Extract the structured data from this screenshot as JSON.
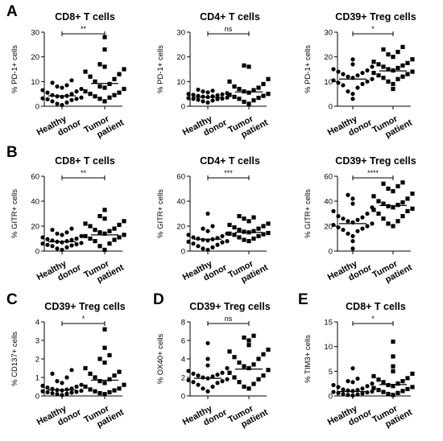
{
  "panel_letters": [
    "A",
    "B",
    "C",
    "D",
    "E"
  ],
  "chart_data": [
    {
      "type": "scatter",
      "title": "CD8+ T cells",
      "ylabel": "% PD-1+ cells",
      "ylim": [
        0,
        30
      ],
      "yticks": [
        "0",
        "10",
        "20",
        "30"
      ],
      "categories": [
        "Healthy donor",
        "Tumor patient"
      ],
      "significance": "**",
      "series": [
        {
          "marker": "circle",
          "mean": 4.2,
          "values": [
            0.5,
            1.0,
            1.5,
            2.0,
            2.5,
            2.8,
            3.0,
            3.2,
            3.5,
            3.8,
            4.0,
            4.2,
            4.5,
            5.0,
            5.5,
            6.0,
            6.5,
            7.0,
            7.5,
            8.0,
            8.5,
            9.5,
            10.5
          ]
        },
        {
          "marker": "square",
          "mean": 9.2,
          "values": [
            2.0,
            3.0,
            3.5,
            4.0,
            4.5,
            5.0,
            5.5,
            6.0,
            7.0,
            7.5,
            8.0,
            9.0,
            10.0,
            11.0,
            12.0,
            13.0,
            14.0,
            15.0,
            16.0,
            17.0,
            23.0,
            28.0
          ]
        }
      ]
    },
    {
      "type": "scatter",
      "title": "CD4+ T cells",
      "ylabel": "% PD-1+ cells",
      "ylim": [
        0,
        30
      ],
      "yticks": [
        "0",
        "10",
        "20",
        "30"
      ],
      "categories": [
        "Healthy donor",
        "Tumor patient"
      ],
      "significance": "ns",
      "series": [
        {
          "marker": "circle",
          "mean": 3.6,
          "values": [
            1.5,
            2.0,
            2.3,
            2.6,
            2.9,
            3.0,
            3.1,
            3.3,
            3.5,
            3.7,
            3.9,
            4.0,
            4.2,
            4.4,
            4.6,
            4.8,
            5.0,
            5.3,
            5.6,
            6.0,
            6.3,
            6.7
          ]
        },
        {
          "marker": "square",
          "mean": 5.8,
          "values": [
            1.0,
            1.8,
            2.4,
            3.0,
            3.4,
            3.8,
            4.2,
            4.6,
            5.0,
            5.5,
            6.0,
            6.5,
            7.0,
            7.5,
            8.0,
            9.0,
            10.0,
            11.0,
            16.0,
            16.5
          ]
        }
      ]
    },
    {
      "type": "scatter",
      "title": "CD39+ Treg cells",
      "ylabel": "% PD-1+ cells",
      "ylim": [
        0,
        30
      ],
      "yticks": [
        "0",
        "10",
        "20",
        "30"
      ],
      "categories": [
        "Healthy donor",
        "Tumor patient"
      ],
      "significance": "*",
      "series": [
        {
          "marker": "circle",
          "mean": 11.0,
          "values": [
            3.0,
            5.0,
            6.0,
            7.5,
            8.5,
            9.0,
            9.5,
            10.0,
            10.5,
            11.0,
            11.5,
            12.0,
            12.5,
            13.0,
            13.5,
            14.0,
            14.5,
            15.0,
            16.0,
            17.0,
            19.0
          ]
        },
        {
          "marker": "square",
          "mean": 14.3,
          "values": [
            7.0,
            9.0,
            10.0,
            11.0,
            11.5,
            12.0,
            12.5,
            13.0,
            13.5,
            14.0,
            14.5,
            15.0,
            15.5,
            16.0,
            16.5,
            17.0,
            17.5,
            18.0,
            19.0,
            20.0,
            21.0,
            22.0,
            23.0,
            24.0
          ]
        }
      ]
    },
    {
      "type": "scatter",
      "title": "CD8+ T cells",
      "ylabel": "% GITR+ cells",
      "ylim": [
        0,
        60
      ],
      "yticks": [
        "0",
        "20",
        "40",
        "60"
      ],
      "categories": [
        "Healthy donor",
        "Tumor patient"
      ],
      "significance": "**",
      "series": [
        {
          "marker": "circle",
          "mean": 7.5,
          "values": [
            1.0,
            2.0,
            3.0,
            4.0,
            4.5,
            5.0,
            5.5,
            6.0,
            6.5,
            7.0,
            7.5,
            8.0,
            8.5,
            9.0,
            9.5,
            10.0,
            11.0,
            12.0,
            13.0,
            14.0,
            15.0,
            17.0,
            18.0
          ]
        },
        {
          "marker": "square",
          "mean": 13.0,
          "values": [
            1.0,
            4.0,
            6.0,
            8.0,
            9.0,
            10.0,
            11.0,
            12.0,
            13.0,
            14.0,
            15.0,
            16.0,
            17.0,
            18.0,
            20.0,
            21.0,
            22.0,
            24.0,
            26.0,
            28.0,
            33.0
          ]
        }
      ]
    },
    {
      "type": "scatter",
      "title": "CD4+ T cells",
      "ylabel": "% GITR+ cells",
      "ylim": [
        0,
        60
      ],
      "yticks": [
        "0",
        "20",
        "40",
        "60"
      ],
      "categories": [
        "Healthy donor",
        "Tumor patient"
      ],
      "significance": "***",
      "series": [
        {
          "marker": "circle",
          "mean": 9.5,
          "values": [
            1.0,
            2.0,
            3.0,
            4.0,
            5.0,
            6.0,
            7.0,
            7.5,
            8.0,
            8.5,
            9.0,
            9.5,
            10.0,
            10.5,
            11.0,
            12.0,
            13.0,
            14.0,
            16.0,
            18.0,
            20.0,
            30.0
          ]
        },
        {
          "marker": "square",
          "mean": 15.0,
          "values": [
            8.0,
            9.0,
            10.0,
            11.0,
            12.0,
            13.0,
            13.5,
            14.0,
            14.5,
            15.0,
            15.5,
            16.0,
            17.0,
            18.0,
            19.0,
            20.0,
            21.0,
            22.0,
            24.0,
            26.0,
            27.0,
            28.0
          ]
        }
      ]
    },
    {
      "type": "scatter",
      "title": "CD39+ Treg cells",
      "ylabel": "% GITR+ cells",
      "ylim": [
        0,
        60
      ],
      "yticks": [
        "0",
        "20",
        "40",
        "60"
      ],
      "categories": [
        "Healthy donor",
        "Tumor patient"
      ],
      "significance": "****",
      "series": [
        {
          "marker": "circle",
          "mean": 22.0,
          "values": [
            2.0,
            8.0,
            12.0,
            14.0,
            16.0,
            17.0,
            18.0,
            19.0,
            20.0,
            21.0,
            22.0,
            23.0,
            24.0,
            25.0,
            26.0,
            27.0,
            28.0,
            30.0,
            32.0,
            35.0,
            38.0,
            42.0,
            45.0
          ]
        },
        {
          "marker": "square",
          "mean": 36.5,
          "values": [
            20.0,
            22.0,
            24.0,
            26.0,
            28.0,
            30.0,
            32.0,
            33.0,
            34.0,
            35.0,
            36.0,
            37.0,
            38.0,
            39.0,
            40.0,
            42.0,
            44.0,
            46.0,
            48.0,
            50.0,
            52.0,
            54.0,
            55.0
          ]
        }
      ]
    },
    {
      "type": "scatter",
      "title": "CD39+ Treg cells",
      "ylabel": "% CD137+ cells",
      "ylim": [
        0,
        4
      ],
      "yticks": [
        "0",
        "1",
        "2",
        "3",
        "4"
      ],
      "categories": [
        "Healthy donor",
        "Tumor patient"
      ],
      "significance": "*",
      "series": [
        {
          "marker": "circle",
          "mean": 0.32,
          "values": [
            0.05,
            0.1,
            0.12,
            0.15,
            0.18,
            0.2,
            0.22,
            0.25,
            0.28,
            0.3,
            0.32,
            0.35,
            0.38,
            0.4,
            0.45,
            0.5,
            0.55,
            0.6,
            0.7,
            0.8,
            1.0,
            1.2,
            1.4
          ]
        },
        {
          "marker": "square",
          "mean": 0.85,
          "values": [
            0.1,
            0.15,
            0.2,
            0.25,
            0.3,
            0.35,
            0.4,
            0.5,
            0.6,
            0.7,
            0.8,
            0.9,
            1.0,
            1.1,
            1.2,
            1.3,
            1.5,
            1.8,
            2.0,
            2.2,
            2.6,
            3.6
          ]
        }
      ]
    },
    {
      "type": "scatter",
      "title": "CD39+ Treg cells",
      "ylabel": "% OX40+ cells",
      "ylim": [
        0,
        8
      ],
      "yticks": [
        "0",
        "2",
        "4",
        "6",
        "8"
      ],
      "categories": [
        "Healthy donor",
        "Tumor patient"
      ],
      "significance": "ns",
      "series": [
        {
          "marker": "circle",
          "mean": 1.9,
          "values": [
            0.5,
            0.8,
            1.0,
            1.2,
            1.4,
            1.5,
            1.6,
            1.7,
            1.8,
            1.9,
            2.0,
            2.1,
            2.2,
            2.3,
            2.4,
            2.5,
            2.7,
            3.0,
            3.3,
            4.0,
            5.7
          ]
        },
        {
          "marker": "square",
          "mean": 2.9,
          "values": [
            0.8,
            1.0,
            1.3,
            1.5,
            1.8,
            2.0,
            2.2,
            2.5,
            2.8,
            3.0,
            3.2,
            3.4,
            3.6,
            4.0,
            4.2,
            4.5,
            4.8,
            5.0,
            5.5,
            6.0,
            6.3,
            6.5
          ]
        }
      ]
    },
    {
      "type": "scatter",
      "title": "CD8+ T cells",
      "ylabel": "% TIM3+ cells",
      "ylim": [
        0,
        15
      ],
      "yticks": [
        "0",
        "5",
        "10",
        "15"
      ],
      "categories": [
        "Healthy donor",
        "Tumor patient"
      ],
      "significance": "*",
      "series": [
        {
          "marker": "circle",
          "mean": 0.9,
          "values": [
            0.1,
            0.2,
            0.3,
            0.4,
            0.5,
            0.6,
            0.7,
            0.8,
            0.9,
            1.0,
            1.1,
            1.2,
            1.3,
            1.5,
            1.8,
            2.0,
            2.2,
            2.5,
            2.8,
            3.0,
            3.5,
            5.6
          ]
        },
        {
          "marker": "square",
          "mean": 2.3,
          "values": [
            0.2,
            0.4,
            0.6,
            0.8,
            1.0,
            1.2,
            1.4,
            1.6,
            1.8,
            2.0,
            2.2,
            2.5,
            2.8,
            3.0,
            3.3,
            3.6,
            4.0,
            4.5,
            5.0,
            6.0,
            8.0,
            11.0
          ]
        }
      ]
    }
  ]
}
